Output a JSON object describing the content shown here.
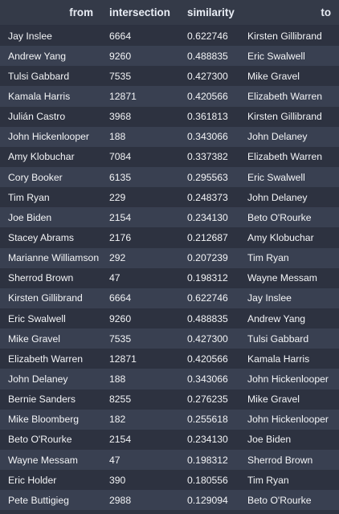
{
  "table": {
    "headers": [
      "from",
      "intersection",
      "similarity",
      "to"
    ],
    "rows": [
      [
        "Jay Inslee",
        "6664",
        "0.622746",
        "Kirsten Gillibrand"
      ],
      [
        "Andrew Yang",
        "9260",
        "0.488835",
        "Eric Swalwell"
      ],
      [
        "Tulsi Gabbard",
        "7535",
        "0.427300",
        "Mike Gravel"
      ],
      [
        "Kamala Harris",
        "12871",
        "0.420566",
        "Elizabeth Warren"
      ],
      [
        "Julián Castro",
        "3968",
        "0.361813",
        "Kirsten Gillibrand"
      ],
      [
        "John Hickenlooper",
        "188",
        "0.343066",
        "John Delaney"
      ],
      [
        "Amy Klobuchar",
        "7084",
        "0.337382",
        "Elizabeth Warren"
      ],
      [
        "Cory Booker",
        "6135",
        "0.295563",
        "Eric Swalwell"
      ],
      [
        "Tim Ryan",
        "229",
        "0.248373",
        "John Delaney"
      ],
      [
        "Joe Biden",
        "2154",
        "0.234130",
        "Beto O'Rourke"
      ],
      [
        "Stacey Abrams",
        "2176",
        "0.212687",
        "Amy Klobuchar"
      ],
      [
        "Marianne Williamson",
        "292",
        "0.207239",
        "Tim Ryan"
      ],
      [
        "Sherrod Brown",
        "47",
        "0.198312",
        "Wayne Messam"
      ],
      [
        "Kirsten Gillibrand",
        "6664",
        "0.622746",
        "Jay Inslee"
      ],
      [
        "Eric Swalwell",
        "9260",
        "0.488835",
        "Andrew Yang"
      ],
      [
        "Mike Gravel",
        "7535",
        "0.427300",
        "Tulsi Gabbard"
      ],
      [
        "Elizabeth Warren",
        "12871",
        "0.420566",
        "Kamala Harris"
      ],
      [
        "John Delaney",
        "188",
        "0.343066",
        "John Hickenlooper"
      ],
      [
        "Bernie Sanders",
        "8255",
        "0.276235",
        "Mike Gravel"
      ],
      [
        "Mike Bloomberg",
        "182",
        "0.255618",
        "John Hickenlooper"
      ],
      [
        "Beto O'Rourke",
        "2154",
        "0.234130",
        "Joe Biden"
      ],
      [
        "Wayne Messam",
        "47",
        "0.198312",
        "Sherrod Brown"
      ],
      [
        "Eric Holder",
        "390",
        "0.180556",
        "Tim Ryan"
      ],
      [
        "Pete Buttigieg",
        "2988",
        "0.129094",
        "Beto O'Rourke"
      ]
    ]
  }
}
